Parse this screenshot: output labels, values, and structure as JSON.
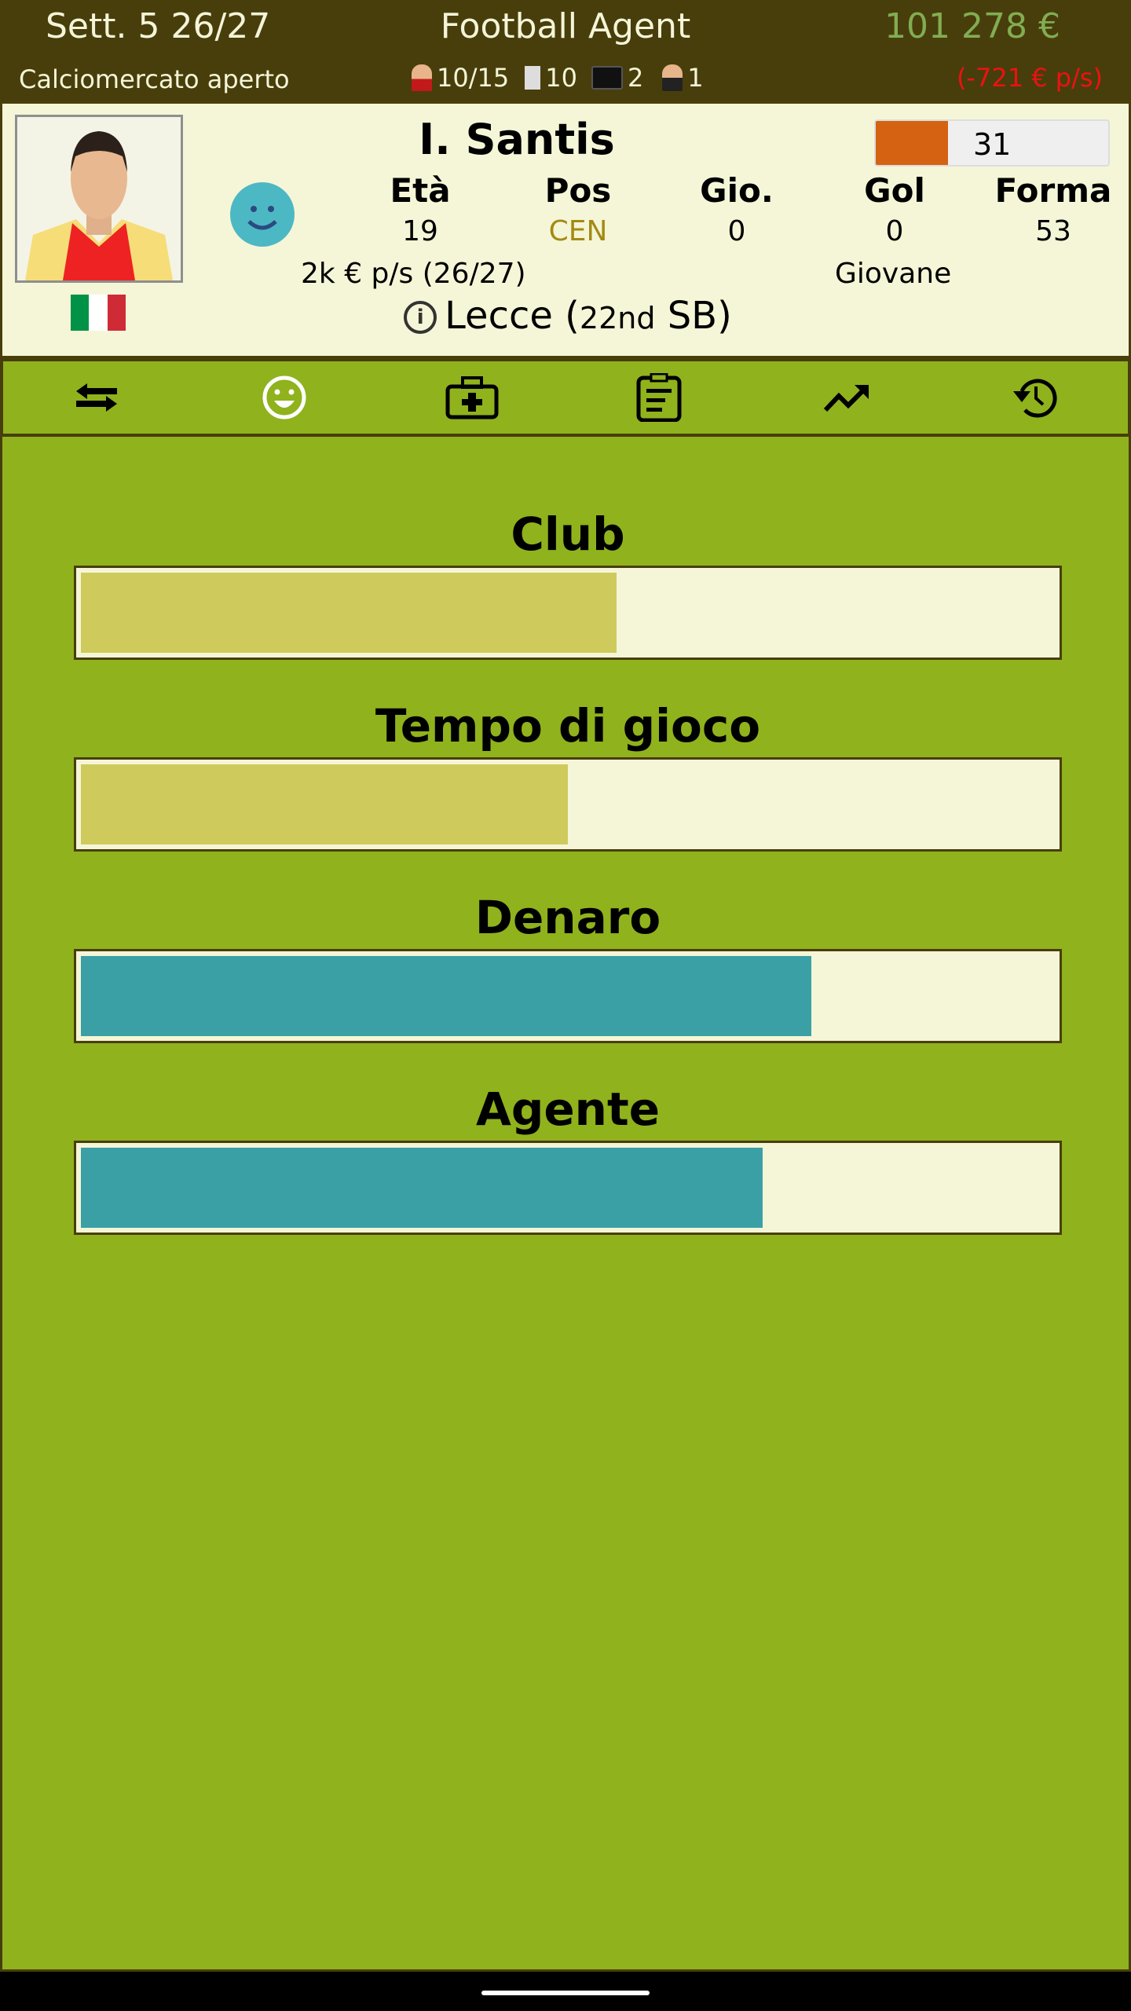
{
  "header": {
    "week": "Sett. 5 26/27",
    "title": "Football Agent",
    "balance": "101 278 €",
    "status": "Calciomercato aperto",
    "players": "10/15",
    "contracts": "10",
    "scouts": "2",
    "agents": "1",
    "income": "(-721 € p/s)"
  },
  "player": {
    "name": "I. Santis",
    "rating": "31",
    "rating_color": "#d56212",
    "nationality": "Italy",
    "stats": [
      {
        "label": "Età",
        "value": "19"
      },
      {
        "label": "Pos",
        "value": "CEN"
      },
      {
        "label": "Gio.",
        "value": "0"
      },
      {
        "label": "Gol",
        "value": "0"
      },
      {
        "label": "Forma",
        "value": "53"
      }
    ],
    "salary": "2k € p/s (26/27)",
    "category": "Giovane",
    "club": "Lecce (",
    "club_rank": "22nd",
    "club_league": " SB)"
  },
  "tabs": [
    {
      "icon": "transfer-icon"
    },
    {
      "icon": "smile-icon",
      "active": true
    },
    {
      "icon": "medical-kit-icon"
    },
    {
      "icon": "clipboard-icon"
    },
    {
      "icon": "trending-up-icon"
    },
    {
      "icon": "history-icon"
    }
  ],
  "satisfaction": [
    {
      "label": "Club",
      "percent": 55,
      "color": "#cfca5c"
    },
    {
      "label": "Tempo di gioco",
      "percent": 50,
      "color": "#cfca5c"
    },
    {
      "label": "Denaro",
      "percent": 75,
      "color": "#3ba0a6"
    },
    {
      "label": "Agente",
      "percent": 70,
      "color": "#3ba0a6"
    }
  ]
}
